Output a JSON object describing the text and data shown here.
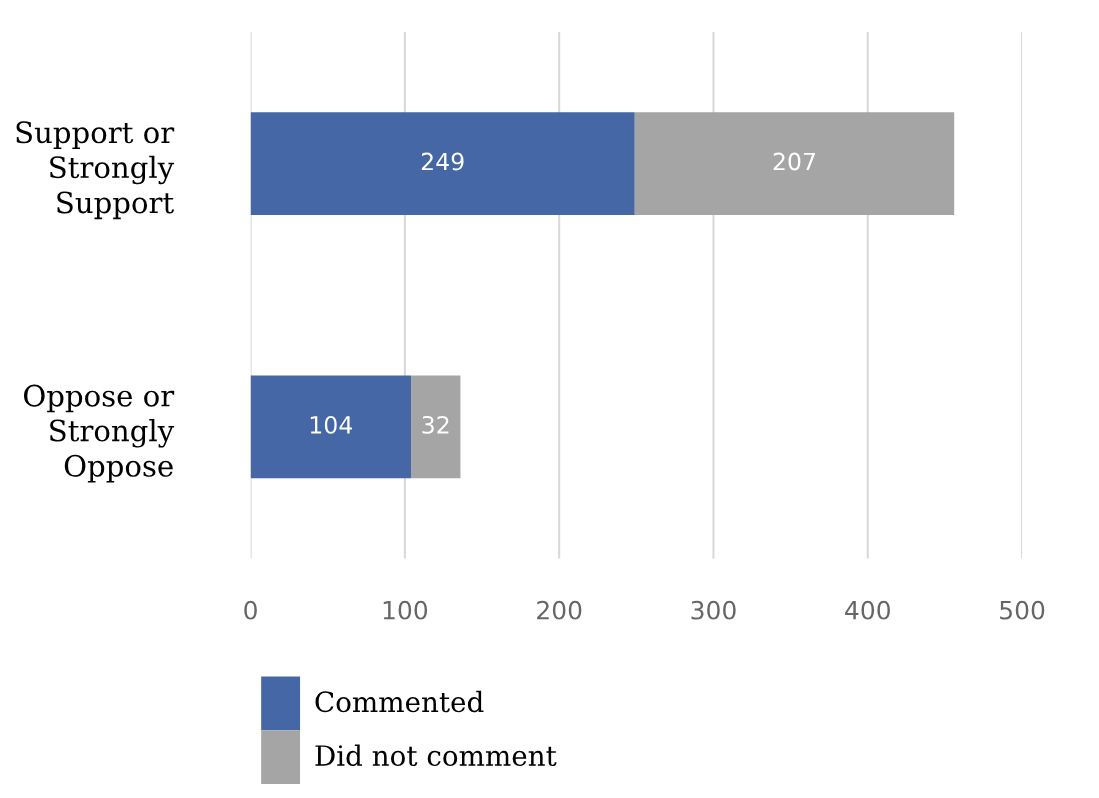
{
  "chart_data": {
    "type": "bar",
    "orientation": "horizontal",
    "stacked": true,
    "categories": [
      "Support or\nStrongly\nSupport",
      "Oppose or\nStrongly\nOppose"
    ],
    "series": [
      {
        "name": "Commented",
        "color": "#4567a5",
        "values": [
          249,
          104
        ]
      },
      {
        "name": "Did not comment",
        "color": "#a5a5a5",
        "values": [
          207,
          32
        ]
      }
    ],
    "xlim": [
      0,
      500
    ],
    "xticks": [
      0,
      100,
      200,
      300,
      400,
      500
    ],
    "grid": "x",
    "legend": "bottom",
    "data_labels": true
  }
}
